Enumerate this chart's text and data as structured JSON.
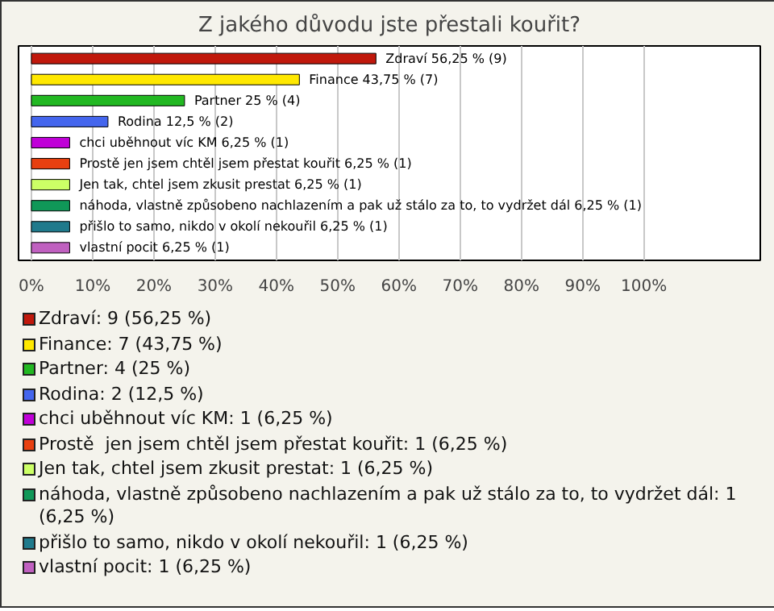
{
  "chart_data": {
    "type": "bar",
    "orientation": "horizontal",
    "title": "Z jakého důvodu jste přestali kouřit?",
    "categories": [
      null,
      null,
      null,
      null,
      null,
      null,
      null,
      null,
      null,
      null
    ],
    "values": [
      56.25,
      43.75,
      25,
      12.5,
      6.25,
      6.25,
      6.25,
      6.25,
      6.25,
      6.25
    ],
    "colors": [
      "#c0180c",
      "#ffe800",
      "#22b822",
      "#4466ee",
      "#c000d8",
      "#e84010",
      "#ccff66",
      "#109858",
      "#1f7a8c",
      "#c060c0"
    ],
    "value_labels": [
      "Zdraví 56,25 % (9)",
      "Finance 43,75 % (7)",
      "Partner 25 % (4)",
      "Rodina 12,5 % (2)",
      "chci uběhnout víc KM 6,25 % (1)",
      "Prostě  jen jsem chtěl jsem přestat kouřit 6,25 % (1)",
      "Jen tak, chtel jsem zkusit prestat 6,25 % (1)",
      "náhoda, vlastně způsobeno nachlazením a pak už stálo za to, to vydržet dál 6,25 % (1)",
      "přišlo to samo, nikdo v okolí nekouřil 6,25 % (1)",
      "vlastní pocit 6,25 % (1)"
    ],
    "xlim": [
      -2.1,
      119
    ],
    "xticks": [
      {
        "value": 0,
        "label": "0%"
      },
      {
        "value": 10,
        "label": "10%"
      },
      {
        "value": 20,
        "label": "20%"
      },
      {
        "value": 30,
        "label": "30%"
      },
      {
        "value": 40,
        "label": "40%"
      },
      {
        "value": 50,
        "label": "50%"
      },
      {
        "value": 60,
        "label": "60%"
      },
      {
        "value": 70,
        "label": "70%"
      },
      {
        "value": 80,
        "label": "80%"
      },
      {
        "value": 90,
        "label": "90%"
      },
      {
        "value": 100,
        "label": "100%"
      }
    ],
    "grid": "x",
    "annotations": [
      "Zdraví: 9 (56,25 %)",
      "Finance: 7 (43,75 %)",
      "Partner: 4 (25 %)",
      "Rodina: 2 (12,5 %)",
      "chci uběhnout víc KM: 1 (6,25 %)",
      "Prostě  jen jsem chtěl jsem přestat kouřit: 1 (6,25 %)",
      "Jen tak, chtel jsem zkusit prestat: 1 (6,25 %)",
      "náhoda, vlastně způsobeno nachlazením a pak už stálo za to, to vydržet dál: 1 (6,25 %)",
      "přišlo to samo, nikdo v okolí nekouřil: 1 (6,25 %)",
      "vlastní pocit: 1 (6,25 %)"
    ]
  }
}
